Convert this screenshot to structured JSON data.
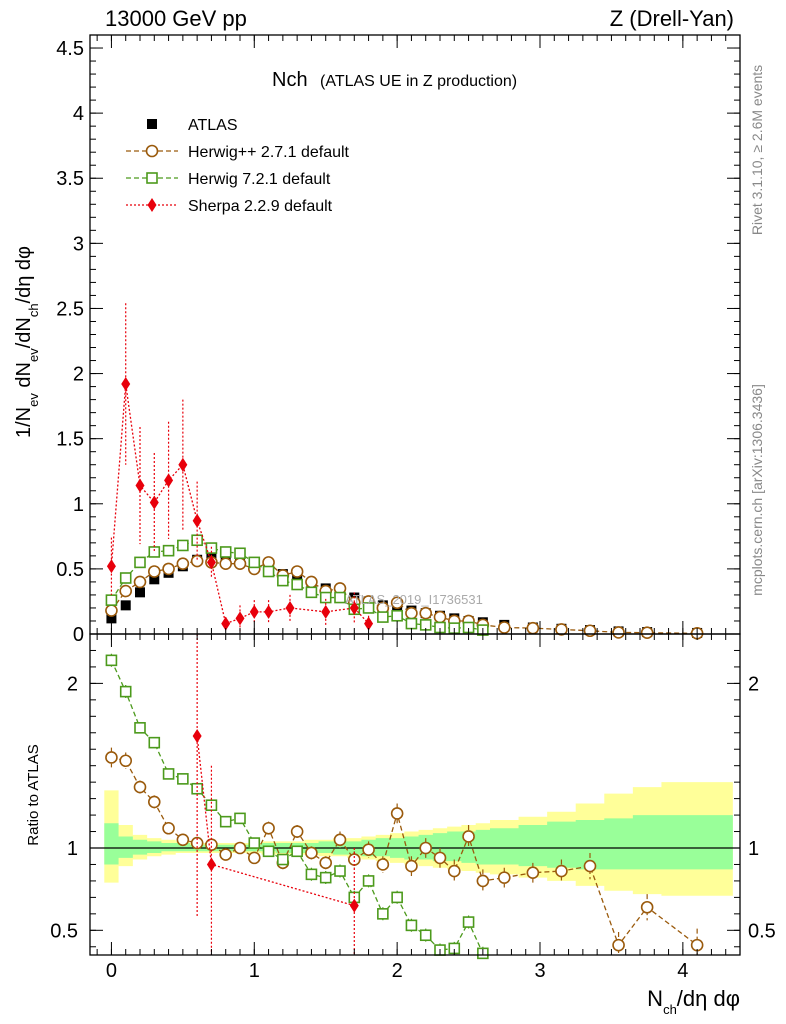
{
  "header": {
    "left": "13000 GeV pp",
    "right": "Z (Drell-Yan)"
  },
  "side_labels": {
    "rivet": "Rivet 3.1.10, ≥ 2.6M events",
    "mcplots": "mcplots.cern.ch [arXiv:1306.3436]"
  },
  "watermark": "ATLAS_2019_I1736531",
  "colors": {
    "atlas": "#000000",
    "herwigpp": "#9a5a0c",
    "herwig7": "#4c9a1c",
    "sherpa": "#e8000b",
    "band_outer": "#ffff99",
    "band_inner": "#99ff99"
  },
  "chart_data": [
    {
      "type": "scatter",
      "title_main": "Nch",
      "title_sub": "(ATLAS UE in Z production)",
      "ylabel_parts": [
        "1/N",
        "ev",
        " dN",
        "ev",
        "/dN",
        "ch",
        "/dη dφ"
      ],
      "xlim": [
        -0.15,
        4.4
      ],
      "ylim": [
        0,
        4.6
      ],
      "yticks": [
        0,
        0.5,
        1,
        1.5,
        2,
        2.5,
        3,
        3.5,
        4,
        4.5
      ],
      "ytick_labels": [
        "0",
        "0.5",
        "1",
        "1.5",
        "2",
        "2.5",
        "3",
        "3.5",
        "4",
        "4.5"
      ],
      "legend_position": "top-left",
      "grid": false,
      "series": [
        {
          "name": "ATLAS",
          "marker": "filled-square",
          "x": [
            0.0,
            0.1,
            0.2,
            0.3,
            0.4,
            0.5,
            0.6,
            0.7,
            0.8,
            0.9,
            1.0,
            1.1,
            1.2,
            1.3,
            1.4,
            1.5,
            1.6,
            1.7,
            1.8,
            1.9,
            2.0,
            2.1,
            2.2,
            2.3,
            2.4,
            2.5,
            2.6,
            2.75,
            2.95,
            3.15,
            3.35,
            3.55,
            3.75,
            4.1
          ],
          "y": [
            0.12,
            0.22,
            0.32,
            0.42,
            0.47,
            0.52,
            0.57,
            0.58,
            0.58,
            0.56,
            0.53,
            0.5,
            0.46,
            0.43,
            0.39,
            0.35,
            0.32,
            0.28,
            0.25,
            0.22,
            0.2,
            0.18,
            0.16,
            0.14,
            0.12,
            0.1,
            0.09,
            0.07,
            0.05,
            0.04,
            0.03,
            0.02,
            0.015,
            0.008
          ]
        },
        {
          "name": "Herwig++ 2.7.1 default",
          "marker": "open-circle",
          "x": [
            0.0,
            0.1,
            0.2,
            0.3,
            0.4,
            0.5,
            0.6,
            0.7,
            0.8,
            0.9,
            1.0,
            1.1,
            1.2,
            1.3,
            1.4,
            1.5,
            1.6,
            1.7,
            1.8,
            1.9,
            2.0,
            2.1,
            2.2,
            2.3,
            2.4,
            2.5,
            2.6,
            2.75,
            2.95,
            3.15,
            3.35,
            3.55,
            3.75,
            4.1
          ],
          "y": [
            0.18,
            0.33,
            0.4,
            0.48,
            0.5,
            0.54,
            0.56,
            0.55,
            0.54,
            0.54,
            0.5,
            0.55,
            0.45,
            0.48,
            0.4,
            0.33,
            0.35,
            0.24,
            0.25,
            0.2,
            0.24,
            0.16,
            0.16,
            0.13,
            0.1,
            0.1,
            0.07,
            0.05,
            0.045,
            0.035,
            0.025,
            0.012,
            0.01,
            0.005
          ]
        },
        {
          "name": "Herwig 7.2.1 default",
          "marker": "open-square",
          "x": [
            0.0,
            0.1,
            0.2,
            0.3,
            0.4,
            0.5,
            0.6,
            0.7,
            0.8,
            0.9,
            1.0,
            1.1,
            1.2,
            1.3,
            1.4,
            1.5,
            1.6,
            1.7,
            1.8,
            1.9,
            2.0,
            2.1,
            2.2,
            2.3,
            2.4,
            2.5,
            2.6
          ],
          "y": [
            0.26,
            0.43,
            0.55,
            0.63,
            0.64,
            0.68,
            0.72,
            0.66,
            0.63,
            0.62,
            0.55,
            0.48,
            0.41,
            0.38,
            0.32,
            0.28,
            0.28,
            0.19,
            0.2,
            0.13,
            0.14,
            0.08,
            0.07,
            0.05,
            0.045,
            0.05,
            0.03
          ]
        },
        {
          "name": "Sherpa 2.2.9 default",
          "marker": "filled-diamond",
          "x": [
            0.0,
            0.1,
            0.2,
            0.3,
            0.4,
            0.5,
            0.6,
            0.7,
            0.8,
            0.9,
            1.0,
            1.1,
            1.25,
            1.5,
            1.7,
            1.8
          ],
          "y": [
            0.52,
            1.92,
            1.14,
            1.01,
            1.18,
            1.3,
            0.87,
            0.55,
            0.08,
            0.12,
            0.17,
            0.17,
            0.2,
            0.17,
            0.2,
            0.08
          ],
          "err": [
            0.22,
            0.62,
            0.45,
            0.38,
            0.45,
            0.5,
            0.3,
            0.12,
            0.05,
            0.1,
            0.09,
            0.09,
            0.1,
            0.1,
            0.12,
            0.06
          ]
        }
      ]
    },
    {
      "type": "line",
      "ylabel": "Ratio to ATLAS",
      "xlabel_parts": [
        "N",
        "ch",
        "/dη dφ"
      ],
      "xlim": [
        -0.15,
        4.4
      ],
      "ylim": [
        0.35,
        2.3
      ],
      "xticks": [
        0,
        1,
        2,
        3,
        4
      ],
      "xtick_labels": [
        "0",
        "1",
        "2",
        "3",
        "4"
      ],
      "yticks": [
        0.5,
        1,
        2
      ],
      "ytick_labels": [
        "0.5",
        "1",
        "2"
      ],
      "bands": {
        "x_edges": [
          -0.05,
          0.05,
          0.15,
          0.25,
          0.35,
          0.45,
          0.55,
          0.65,
          0.75,
          0.85,
          0.95,
          1.05,
          1.15,
          1.25,
          1.35,
          1.45,
          1.55,
          1.65,
          1.75,
          1.85,
          1.95,
          2.05,
          2.15,
          2.25,
          2.35,
          2.45,
          2.55,
          2.65,
          2.85,
          3.05,
          3.25,
          3.45,
          3.65,
          3.85,
          4.35
        ],
        "outer_low": [
          0.79,
          0.89,
          0.93,
          0.95,
          0.96,
          0.97,
          0.97,
          0.97,
          0.97,
          0.97,
          0.97,
          0.96,
          0.96,
          0.96,
          0.96,
          0.95,
          0.95,
          0.94,
          0.93,
          0.92,
          0.91,
          0.9,
          0.89,
          0.88,
          0.87,
          0.86,
          0.85,
          0.84,
          0.82,
          0.8,
          0.77,
          0.74,
          0.72,
          0.71
        ],
        "outer_high": [
          1.35,
          1.14,
          1.08,
          1.06,
          1.05,
          1.04,
          1.03,
          1.03,
          1.03,
          1.03,
          1.03,
          1.04,
          1.04,
          1.04,
          1.05,
          1.05,
          1.06,
          1.06,
          1.07,
          1.08,
          1.09,
          1.1,
          1.11,
          1.12,
          1.13,
          1.14,
          1.15,
          1.17,
          1.19,
          1.22,
          1.27,
          1.33,
          1.37,
          1.4
        ],
        "inner_low": [
          0.9,
          0.94,
          0.96,
          0.97,
          0.98,
          0.98,
          0.98,
          0.98,
          0.98,
          0.98,
          0.98,
          0.98,
          0.97,
          0.97,
          0.97,
          0.97,
          0.96,
          0.96,
          0.95,
          0.95,
          0.94,
          0.93,
          0.93,
          0.92,
          0.92,
          0.91,
          0.9,
          0.9,
          0.89,
          0.88,
          0.87,
          0.87,
          0.87,
          0.87
        ],
        "inner_high": [
          1.15,
          1.07,
          1.05,
          1.04,
          1.03,
          1.03,
          1.02,
          1.02,
          1.02,
          1.02,
          1.02,
          1.03,
          1.03,
          1.03,
          1.03,
          1.04,
          1.04,
          1.04,
          1.05,
          1.06,
          1.06,
          1.07,
          1.08,
          1.09,
          1.1,
          1.1,
          1.11,
          1.12,
          1.14,
          1.16,
          1.17,
          1.18,
          1.2,
          1.2
        ]
      },
      "series": [
        {
          "name": "Herwig++ 2.7.1 default",
          "x": [
            0.0,
            0.1,
            0.2,
            0.3,
            0.4,
            0.5,
            0.6,
            0.7,
            0.8,
            0.9,
            1.0,
            1.1,
            1.2,
            1.3,
            1.4,
            1.5,
            1.6,
            1.7,
            1.8,
            1.9,
            2.0,
            2.1,
            2.2,
            2.3,
            2.4,
            2.5,
            2.6,
            2.75,
            2.95,
            3.15,
            3.35,
            3.55,
            3.75,
            4.1
          ],
          "y": [
            1.55,
            1.53,
            1.37,
            1.28,
            1.12,
            1.05,
            1.03,
            1.02,
            0.96,
            1.0,
            0.94,
            1.12,
            0.91,
            1.1,
            0.97,
            0.91,
            1.05,
            0.93,
            0.99,
            0.9,
            1.21,
            0.89,
            1.0,
            0.94,
            0.86,
            1.07,
            0.8,
            0.82,
            0.85,
            0.86,
            0.89,
            0.41,
            0.64,
            0.41
          ],
          "err": [
            0.06,
            0.05,
            0.04,
            0.04,
            0.03,
            0.03,
            0.03,
            0.03,
            0.03,
            0.03,
            0.03,
            0.04,
            0.04,
            0.04,
            0.04,
            0.04,
            0.05,
            0.05,
            0.05,
            0.05,
            0.06,
            0.06,
            0.06,
            0.06,
            0.07,
            0.07,
            0.07,
            0.06,
            0.06,
            0.07,
            0.08,
            0.08,
            0.08,
            0.1
          ]
        },
        {
          "name": "Herwig 7.2.1 default",
          "x": [
            0.0,
            0.1,
            0.2,
            0.3,
            0.4,
            0.5,
            0.6,
            0.7,
            0.8,
            0.9,
            1.0,
            1.1,
            1.2,
            1.3,
            1.4,
            1.5,
            1.6,
            1.7,
            1.8,
            1.9,
            2.0,
            2.1,
            2.2,
            2.3,
            2.4,
            2.5,
            2.6
          ],
          "y": [
            2.14,
            1.95,
            1.73,
            1.64,
            1.45,
            1.42,
            1.36,
            1.26,
            1.16,
            1.18,
            1.03,
            0.98,
            0.93,
            0.98,
            0.84,
            0.82,
            0.86,
            0.7,
            0.8,
            0.6,
            0.7,
            0.53,
            0.47,
            0.38,
            0.39,
            0.55,
            0.36
          ],
          "err": [
            0.04,
            0.04,
            0.03,
            0.03,
            0.03,
            0.03,
            0.03,
            0.03,
            0.03,
            0.03,
            0.03,
            0.03,
            0.03,
            0.03,
            0.04,
            0.04,
            0.04,
            0.04,
            0.04,
            0.04,
            0.04,
            0.04,
            0.04,
            0.04,
            0.04,
            0.04,
            0.04
          ]
        },
        {
          "name": "Sherpa 2.2.9 default",
          "x": [
            0.6,
            0.7,
            1.7
          ],
          "y": [
            1.68,
            0.9,
            0.65
          ],
          "err": [
            1.1,
            0.6,
            0.35
          ]
        }
      ]
    }
  ]
}
